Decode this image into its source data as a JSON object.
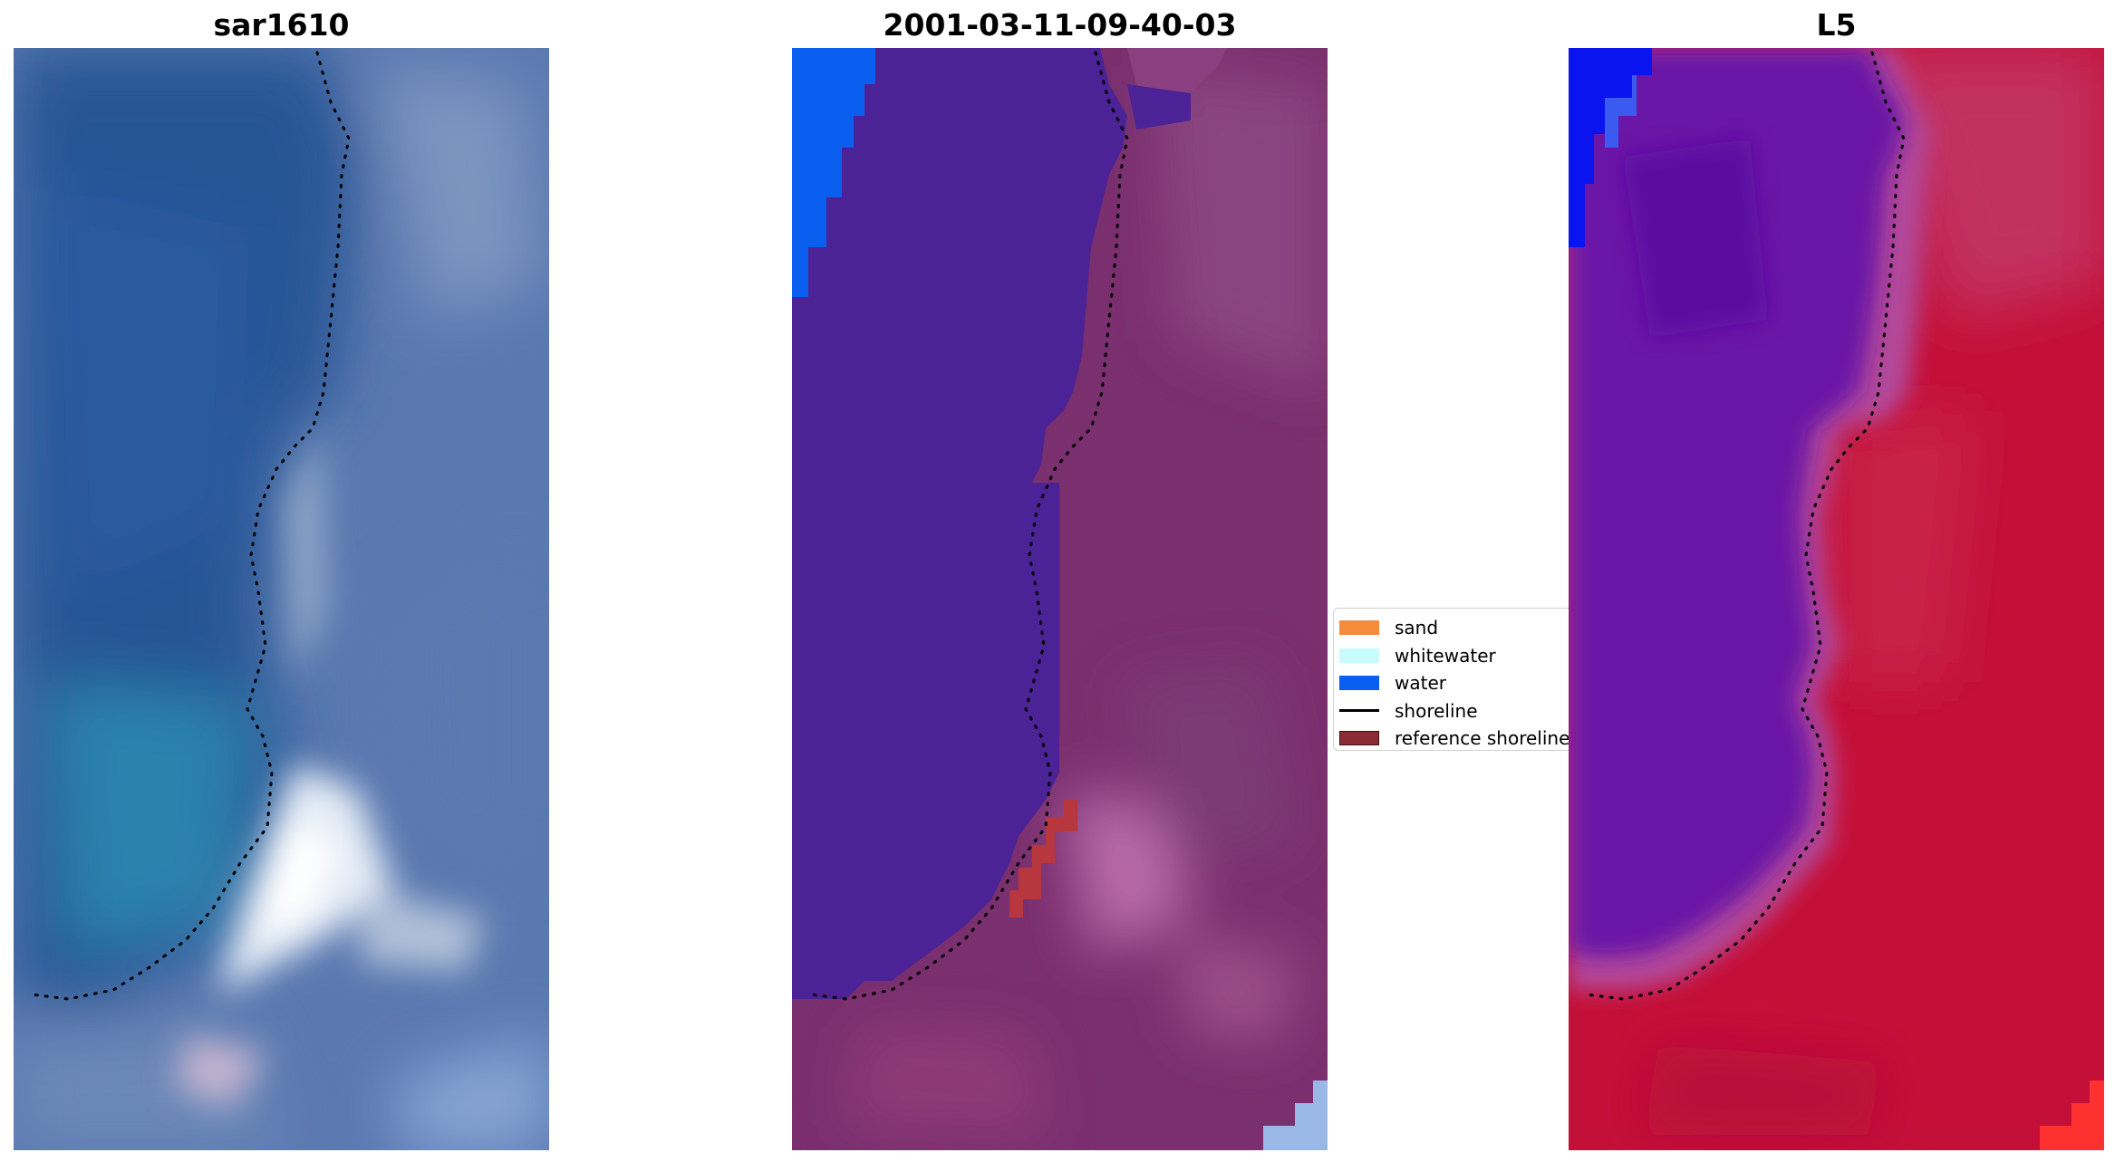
{
  "panels": [
    {
      "title": "sar1610"
    },
    {
      "title": "2001-03-11-09-40-03"
    },
    {
      "title": "L5"
    }
  ],
  "legend": {
    "items": [
      {
        "label": "sand",
        "color": "#f48c3c",
        "kind": "patch"
      },
      {
        "label": "whitewater",
        "color": "#c8fcff",
        "kind": "patch"
      },
      {
        "label": "water",
        "color": "#0a5ef0",
        "kind": "patch"
      },
      {
        "label": "shoreline",
        "color": "#000000",
        "kind": "line"
      },
      {
        "label": "reference shoreline",
        "color": "#8b2c34",
        "kind": "patch"
      }
    ]
  },
  "colors": {
    "rgb_water": "#2a5a9a",
    "rgb_land": "#5a7bb4",
    "class_water": "#4b2396",
    "class_land": "#7a2f6e",
    "class_water_pixels": "#0a5ef0",
    "class_reference": "#b8363e",
    "index_water": "#6a18a6",
    "index_land": "#c41038"
  }
}
